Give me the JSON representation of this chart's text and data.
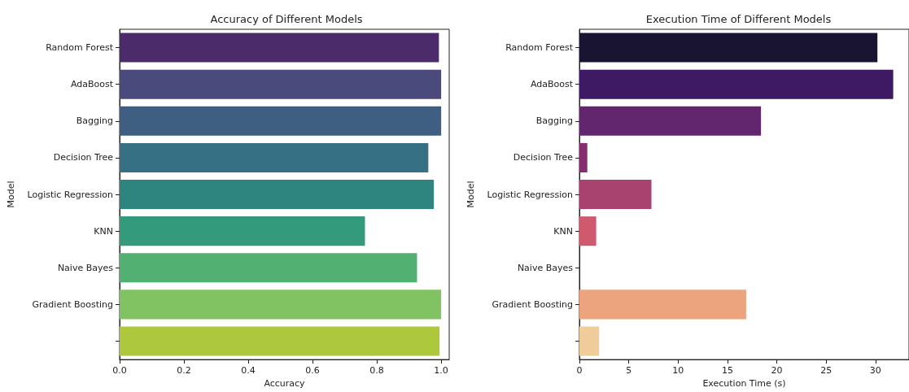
{
  "chart_data": [
    {
      "type": "bar",
      "orientation": "horizontal",
      "title": "Accuracy of Different Models",
      "xlabel": "Accuracy",
      "ylabel": "Model",
      "categories": [
        "Random Forest",
        "AdaBoost",
        "Bagging",
        "Decision Tree",
        "Logistic Regression",
        "KNN",
        "Naive Bayes",
        "Gradient Boosting",
        null
      ],
      "values": [
        0.993,
        1.0,
        1.0,
        0.96,
        0.977,
        0.763,
        0.925,
        1.0,
        0.995
      ],
      "colors": [
        "#4b2b6a",
        "#4a4a7c",
        "#3e5f82",
        "#357084",
        "#2e847f",
        "#349a7c",
        "#53b073",
        "#81c263",
        "#aec83d"
      ],
      "xlim": [
        0,
        1.025
      ],
      "xticks": [
        {
          "value": 0,
          "label": "0.0"
        },
        0.2,
        0.4,
        0.6,
        0.8,
        {
          "value": 1,
          "label": "1.0"
        }
      ],
      "grid": false
    },
    {
      "type": "bar",
      "orientation": "horizontal",
      "title": "Execution Time of Different Models",
      "xlabel": "Execution Time (s)",
      "ylabel": "Model",
      "categories": [
        "Random Forest",
        "AdaBoost",
        "Bagging",
        "Decision Tree",
        "Logistic Regression",
        "KNN",
        "Naive Bayes",
        "Gradient Boosting",
        null
      ],
      "values": [
        30.2,
        31.8,
        18.4,
        0.8,
        7.3,
        1.7,
        0,
        16.9,
        2.0
      ],
      "colors": [
        "#1a1433",
        "#3d1a63",
        "#62266f",
        "#832e6e",
        "#a8436f",
        "#cf5a6e",
        "#e8806f",
        "#eba47d",
        "#f0cc9a"
      ],
      "xlim": [
        0,
        33.4
      ],
      "xticks": [
        0,
        5,
        10,
        15,
        20,
        25,
        30
      ],
      "grid": false
    }
  ]
}
